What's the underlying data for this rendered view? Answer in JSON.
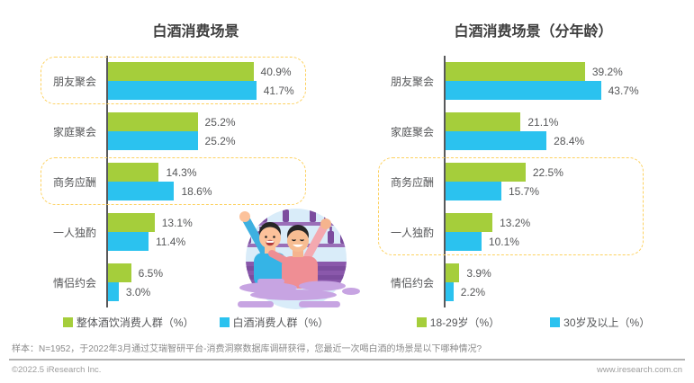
{
  "colors": {
    "green": "#a5ce3b",
    "blue": "#2bc2ef",
    "highlight_border": "#fdd15f",
    "axis": "#58595b"
  },
  "chart_data": [
    {
      "type": "bar",
      "orientation": "horizontal",
      "title": "白酒消费场景",
      "categories": [
        "朋友聚会",
        "家庭聚会",
        "商务应酬",
        "一人独酌",
        "情侣约会"
      ],
      "series": [
        {
          "name": "整体酒饮消费人群（%）",
          "color": "#a5ce3b",
          "values": [
            40.9,
            25.2,
            14.3,
            13.1,
            6.5
          ]
        },
        {
          "name": "白酒消费人群（%）",
          "color": "#2bc2ef",
          "values": [
            41.7,
            25.2,
            18.6,
            11.4,
            3.0
          ]
        }
      ],
      "value_suffix": "%",
      "value_range": [
        0,
        45
      ],
      "grid": false,
      "legend_position": "bottom",
      "highlighted_categories": [
        "朋友聚会",
        "商务应酬"
      ]
    },
    {
      "type": "bar",
      "orientation": "horizontal",
      "title": "白酒消费场景（分年龄）",
      "categories": [
        "朋友聚会",
        "家庭聚会",
        "商务应酬",
        "一人独酌",
        "情侣约会"
      ],
      "series": [
        {
          "name": "18-29岁（%）",
          "color": "#a5ce3b",
          "values": [
            39.2,
            21.1,
            22.5,
            13.2,
            3.9
          ]
        },
        {
          "name": "30岁及以上（%）",
          "color": "#2bc2ef",
          "values": [
            43.7,
            28.4,
            15.7,
            10.1,
            2.2
          ]
        }
      ],
      "value_suffix": "%",
      "value_range": [
        0,
        45
      ],
      "grid": false,
      "legend_position": "bottom",
      "highlighted_categories": [
        "商务应酬",
        "一人独酌"
      ]
    }
  ],
  "footer": {
    "footnote": "样本：N=1952，于2022年3月通过艾瑞智研平台-消费洞察数据库调研获得，您最近一次喝白酒的场景是以下哪种情况?",
    "copyright": "©2022.5 iResearch Inc.",
    "website": "www.iresearch.com.cn"
  }
}
